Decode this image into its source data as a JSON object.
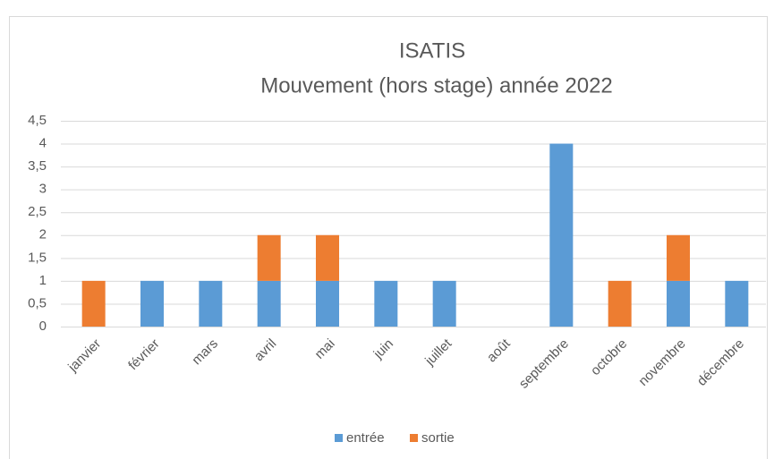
{
  "chart_data": {
    "type": "bar",
    "stacked": true,
    "title": "ISATIS",
    "subtitle": "Mouvement  (hors stage) année 2022",
    "categories": [
      "janvier",
      "février",
      "mars",
      "avril",
      "mai",
      "juin",
      "juillet",
      "août",
      "septembre",
      "octobre",
      "novembre",
      "décembre"
    ],
    "series": [
      {
        "name": "entrée",
        "color": "#5b9bd5",
        "values": [
          0,
          1,
          1,
          1,
          1,
          1,
          1,
          0,
          4,
          0,
          1,
          1
        ]
      },
      {
        "name": "sortie",
        "color": "#ed7d31",
        "values": [
          1,
          0,
          0,
          1,
          1,
          0,
          0,
          0,
          0,
          1,
          1,
          0
        ]
      }
    ],
    "ylim": [
      0,
      4.5
    ],
    "yticks": [
      0,
      {
        "value": 0.5,
        "label": "0,5"
      },
      1,
      {
        "value": 1.5,
        "label": "1,5"
      },
      2,
      {
        "value": 2.5,
        "label": "2,5"
      },
      3,
      {
        "value": 3.5,
        "label": "3,5"
      },
      4,
      {
        "value": 4.5,
        "label": "4,5"
      }
    ],
    "grid": true,
    "legend": "bottom"
  }
}
